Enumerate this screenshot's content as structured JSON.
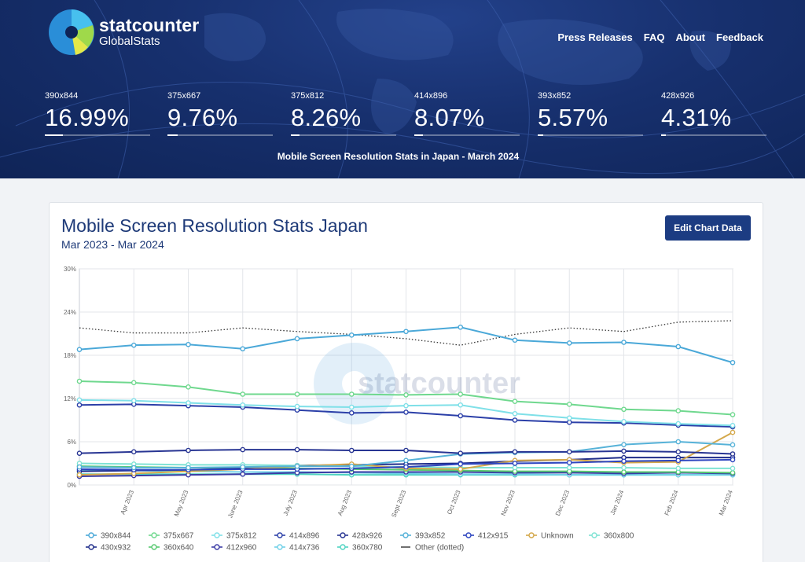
{
  "brand": {
    "name": "statcounter",
    "sub": "GlobalStats"
  },
  "nav": [
    "Press Releases",
    "FAQ",
    "About",
    "Feedback"
  ],
  "stats": [
    {
      "label": "390x844",
      "value": "16.99%",
      "pct": 16.99
    },
    {
      "label": "375x667",
      "value": "9.76%",
      "pct": 9.76
    },
    {
      "label": "375x812",
      "value": "8.26%",
      "pct": 8.26
    },
    {
      "label": "414x896",
      "value": "8.07%",
      "pct": 8.07
    },
    {
      "label": "393x852",
      "value": "5.57%",
      "pct": 5.57
    },
    {
      "label": "428x926",
      "value": "4.31%",
      "pct": 4.31
    }
  ],
  "hero_caption": "Mobile Screen Resolution Stats in Japan - March 2024",
  "edit_button": "Edit Chart Data",
  "watermark": "statcounter",
  "chart_data": {
    "type": "line",
    "title": "Mobile Screen Resolution Stats Japan",
    "subtitle": "Mar 2023 - Mar 2024",
    "categories": [
      "Mar 2023",
      "Apr 2023",
      "May 2023",
      "June 2023",
      "July 2023",
      "Aug 2023",
      "Sept 2023",
      "Oct 2023",
      "Nov 2023",
      "Dec 2023",
      "Jan 2024",
      "Feb 2024",
      "Mar 2024"
    ],
    "tick_labels": [
      "Apr 2023",
      "May 2023",
      "June 2023",
      "July 2023",
      "Aug 2023",
      "Sept 2023",
      "Oct 2023",
      "Nov 2023",
      "Dec 2023",
      "Jan 2024",
      "Feb 2024",
      "Mar 2024"
    ],
    "ylim": [
      0,
      30
    ],
    "yticks": [
      "0%",
      "6%",
      "12%",
      "18%",
      "24%",
      "30%"
    ],
    "grid": true,
    "legend_position": "bottom",
    "series": [
      {
        "name": "390x844",
        "color": "#4aa8d8",
        "values": [
          18.8,
          19.4,
          19.5,
          18.9,
          20.3,
          20.8,
          21.3,
          21.9,
          20.1,
          19.7,
          19.8,
          19.2,
          16.99
        ]
      },
      {
        "name": "375x667",
        "color": "#6fd88e",
        "values": [
          14.4,
          14.2,
          13.6,
          12.6,
          12.6,
          12.6,
          12.5,
          12.6,
          11.6,
          11.2,
          10.5,
          10.3,
          9.76
        ]
      },
      {
        "name": "375x812",
        "color": "#7fe0e8",
        "values": [
          11.8,
          11.7,
          11.4,
          11.1,
          10.9,
          10.8,
          11.0,
          11.1,
          9.9,
          9.3,
          8.8,
          8.5,
          8.26
        ]
      },
      {
        "name": "414x896",
        "color": "#2b3fa8",
        "values": [
          11.1,
          11.2,
          11.0,
          10.8,
          10.4,
          10.0,
          10.1,
          9.6,
          9.0,
          8.7,
          8.6,
          8.3,
          8.07
        ]
      },
      {
        "name": "428x926",
        "color": "#283593",
        "values": [
          4.4,
          4.6,
          4.8,
          4.9,
          4.9,
          4.8,
          4.8,
          4.4,
          4.6,
          4.6,
          4.7,
          4.6,
          4.31
        ]
      },
      {
        "name": "393x852",
        "color": "#56b2d8",
        "values": [
          2.5,
          2.4,
          2.4,
          2.5,
          2.6,
          2.6,
          3.4,
          4.3,
          4.5,
          4.6,
          5.6,
          6.0,
          5.57
        ]
      },
      {
        "name": "412x915",
        "color": "#2e46c0",
        "values": [
          2.2,
          2.1,
          2.1,
          2.2,
          2.2,
          2.3,
          2.5,
          2.9,
          3.0,
          3.1,
          3.3,
          3.4,
          3.5
        ]
      },
      {
        "name": "Unknown",
        "color": "#d4a84b",
        "values": [
          1.4,
          1.6,
          1.9,
          2.2,
          2.6,
          2.9,
          2.3,
          2.2,
          3.4,
          3.5,
          3.1,
          3.2,
          7.3
        ]
      },
      {
        "name": "360x800",
        "color": "#7fe3d4",
        "values": [
          3.0,
          2.9,
          2.8,
          2.8,
          2.7,
          2.6,
          2.5,
          2.4,
          2.4,
          2.4,
          2.4,
          2.3,
          2.3
        ]
      },
      {
        "name": "430x932",
        "color": "#1f2d8a",
        "values": [
          1.9,
          2.0,
          2.1,
          2.3,
          2.7,
          2.8,
          2.9,
          3.0,
          3.3,
          3.5,
          3.8,
          3.8,
          3.8
        ]
      },
      {
        "name": "360x640",
        "color": "#57c970",
        "values": [
          2.6,
          2.5,
          2.4,
          2.4,
          2.3,
          2.2,
          2.1,
          2.0,
          1.9,
          1.9,
          1.8,
          1.8,
          1.7
        ]
      },
      {
        "name": "412x960",
        "color": "#3a3aa5",
        "values": [
          1.2,
          1.3,
          1.4,
          1.5,
          1.7,
          1.8,
          1.8,
          1.8,
          1.7,
          1.7,
          1.6,
          1.7,
          1.6
        ]
      },
      {
        "name": "414x736",
        "color": "#6fd0e8",
        "values": [
          2.1,
          2.0,
          1.9,
          1.8,
          1.8,
          1.7,
          1.6,
          1.5,
          1.5,
          1.4,
          1.4,
          1.4,
          1.4
        ]
      },
      {
        "name": "360x780",
        "color": "#4fd4c2",
        "values": [
          1.5,
          1.5,
          1.5,
          1.5,
          1.5,
          1.4,
          1.4,
          1.4,
          1.4,
          1.4,
          1.4,
          1.4,
          1.4
        ]
      },
      {
        "name": "Other (dotted)",
        "color": "#333333",
        "dotted": true,
        "values": [
          21.8,
          21.1,
          21.1,
          21.8,
          21.3,
          20.9,
          20.3,
          19.4,
          20.9,
          21.8,
          21.3,
          22.6,
          22.8
        ]
      }
    ]
  }
}
